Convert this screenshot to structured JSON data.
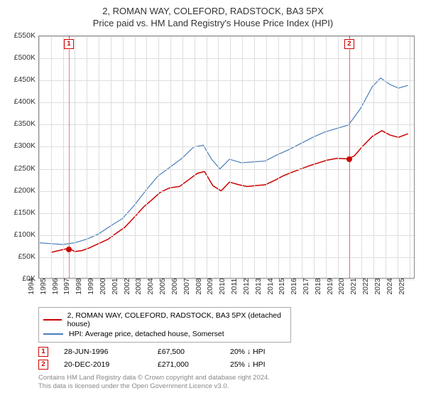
{
  "title": "2, ROMAN WAY, COLEFORD, RADSTOCK, BA3 5PX",
  "subtitle": "Price paid vs. HM Land Registry's House Price Index (HPI)",
  "chart": {
    "type": "line",
    "background_color": "#ffffff",
    "grid_color": "#dddddd",
    "axis_color": "#888888",
    "text_color": "#333333",
    "x": {
      "min": 1994,
      "max": 2025.5,
      "ticks": [
        1994,
        1995,
        1996,
        1997,
        1998,
        1999,
        2000,
        2001,
        2002,
        2003,
        2004,
        2005,
        2006,
        2007,
        2008,
        2009,
        2010,
        2011,
        2012,
        2013,
        2014,
        2015,
        2016,
        2017,
        2018,
        2019,
        2020,
        2021,
        2022,
        2023,
        2024,
        2025
      ],
      "rotation": -90
    },
    "y": {
      "min": 0,
      "max": 550,
      "ticks": [
        0,
        50,
        100,
        150,
        200,
        250,
        300,
        350,
        400,
        450,
        500,
        550
      ],
      "tick_prefix": "£",
      "tick_suffix": "K"
    },
    "series": [
      {
        "name": "price_paid",
        "label": "2, ROMAN WAY, COLEFORD, RADSTOCK, BA3 5PX (detached house)",
        "color": "#cc0000",
        "line_width": 1.5,
        "points": [
          [
            1995.0,
            58
          ],
          [
            1996.5,
            67.5
          ],
          [
            1997.0,
            60
          ],
          [
            1997.6,
            62
          ],
          [
            1998.2,
            68
          ],
          [
            1999.0,
            78
          ],
          [
            1999.8,
            88
          ],
          [
            2000.5,
            102
          ],
          [
            2001.2,
            115
          ],
          [
            2002.0,
            138
          ],
          [
            2002.8,
            162
          ],
          [
            2003.5,
            178
          ],
          [
            2004.2,
            195
          ],
          [
            2005.0,
            205
          ],
          [
            2005.8,
            208
          ],
          [
            2006.5,
            222
          ],
          [
            2007.3,
            238
          ],
          [
            2007.9,
            242
          ],
          [
            2008.6,
            210
          ],
          [
            2009.3,
            198
          ],
          [
            2010.0,
            218
          ],
          [
            2010.8,
            212
          ],
          [
            2011.5,
            208
          ],
          [
            2012.2,
            210
          ],
          [
            2013.0,
            212
          ],
          [
            2013.8,
            222
          ],
          [
            2014.5,
            232
          ],
          [
            2015.2,
            240
          ],
          [
            2016.0,
            248
          ],
          [
            2016.8,
            256
          ],
          [
            2017.5,
            262
          ],
          [
            2018.2,
            268
          ],
          [
            2019.0,
            272
          ],
          [
            2019.97,
            271
          ],
          [
            2020.5,
            278
          ],
          [
            2021.2,
            300
          ],
          [
            2022.0,
            322
          ],
          [
            2022.8,
            335
          ],
          [
            2023.5,
            325
          ],
          [
            2024.2,
            320
          ],
          [
            2025.0,
            328
          ]
        ]
      },
      {
        "name": "hpi",
        "label": "HPI: Average price, detached house, Somerset",
        "color": "#4a7ebb",
        "line_width": 1.2,
        "points": [
          [
            1994.0,
            80
          ],
          [
            1995.0,
            78
          ],
          [
            1996.0,
            76
          ],
          [
            1997.0,
            80
          ],
          [
            1998.0,
            88
          ],
          [
            1999.0,
            100
          ],
          [
            2000.0,
            118
          ],
          [
            2001.0,
            135
          ],
          [
            2002.0,
            165
          ],
          [
            2003.0,
            200
          ],
          [
            2004.0,
            232
          ],
          [
            2005.0,
            252
          ],
          [
            2006.0,
            272
          ],
          [
            2007.0,
            298
          ],
          [
            2007.8,
            302
          ],
          [
            2008.5,
            270
          ],
          [
            2009.2,
            248
          ],
          [
            2010.0,
            270
          ],
          [
            2011.0,
            262
          ],
          [
            2012.0,
            264
          ],
          [
            2013.0,
            266
          ],
          [
            2014.0,
            280
          ],
          [
            2015.0,
            292
          ],
          [
            2016.0,
            306
          ],
          [
            2017.0,
            320
          ],
          [
            2018.0,
            332
          ],
          [
            2019.0,
            340
          ],
          [
            2020.0,
            348
          ],
          [
            2021.0,
            385
          ],
          [
            2022.0,
            435
          ],
          [
            2022.7,
            455
          ],
          [
            2023.5,
            440
          ],
          [
            2024.2,
            432
          ],
          [
            2025.0,
            438
          ]
        ]
      }
    ],
    "sale_markers": [
      {
        "index": 1,
        "x": 1996.5,
        "y": 67.5,
        "color": "#cc0000"
      },
      {
        "index": 2,
        "x": 2019.97,
        "y": 271,
        "color": "#cc0000"
      }
    ],
    "sale_vline_color": "#cc0000"
  },
  "legend": {
    "border_color": "#aaaaaa",
    "items": [
      {
        "color": "#cc0000",
        "label": "2, ROMAN WAY, COLEFORD, RADSTOCK, BA3 5PX (detached house)"
      },
      {
        "color": "#4a7ebb",
        "label": "HPI: Average price, detached house, Somerset"
      }
    ]
  },
  "sales": [
    {
      "index": "1",
      "date": "28-JUN-1996",
      "price": "£67,500",
      "diff": "20% ↓ HPI",
      "color": "#cc0000"
    },
    {
      "index": "2",
      "date": "20-DEC-2019",
      "price": "£271,000",
      "diff": "25% ↓ HPI",
      "color": "#cc0000"
    }
  ],
  "footnote_line1": "Contains HM Land Registry data © Crown copyright and database right 2024.",
  "footnote_line2": "This data is licensed under the Open Government Licence v3.0."
}
